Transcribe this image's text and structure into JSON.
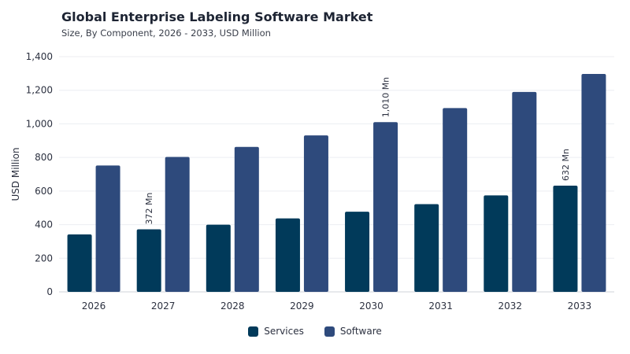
{
  "title": "Global Enterprise Labeling Software Market",
  "subtitle": "Size, By Component, 2026 - 2033, USD Million",
  "chart_data": {
    "type": "bar",
    "categories": [
      "2026",
      "2027",
      "2028",
      "2029",
      "2030",
      "2031",
      "2032",
      "2033"
    ],
    "series": [
      {
        "name": "Services",
        "color": "#013a5a",
        "values": [
          342,
          372,
          400,
          437,
          477,
          522,
          574,
          632
        ]
      },
      {
        "name": "Software",
        "color": "#2e4a7c",
        "values": [
          752,
          803,
          863,
          931,
          1010,
          1094,
          1190,
          1297
        ]
      }
    ],
    "ylabel": "USD Million",
    "ylim": [
      0,
      1400
    ],
    "yticks": [
      0,
      200,
      400,
      600,
      800,
      1000,
      1200,
      1400
    ],
    "ytick_labels": [
      "0",
      "200",
      "400",
      "600",
      "800",
      "1,000",
      "1,200",
      "1,400"
    ],
    "grid": true,
    "legend_position": "bottom-center",
    "annotations": [
      {
        "series": "Services",
        "category": "2027",
        "text": "372 Mn"
      },
      {
        "series": "Software",
        "category": "2030",
        "text": "1,010 Mn"
      },
      {
        "series": "Services",
        "category": "2033",
        "text": "632 Mn"
      }
    ]
  }
}
